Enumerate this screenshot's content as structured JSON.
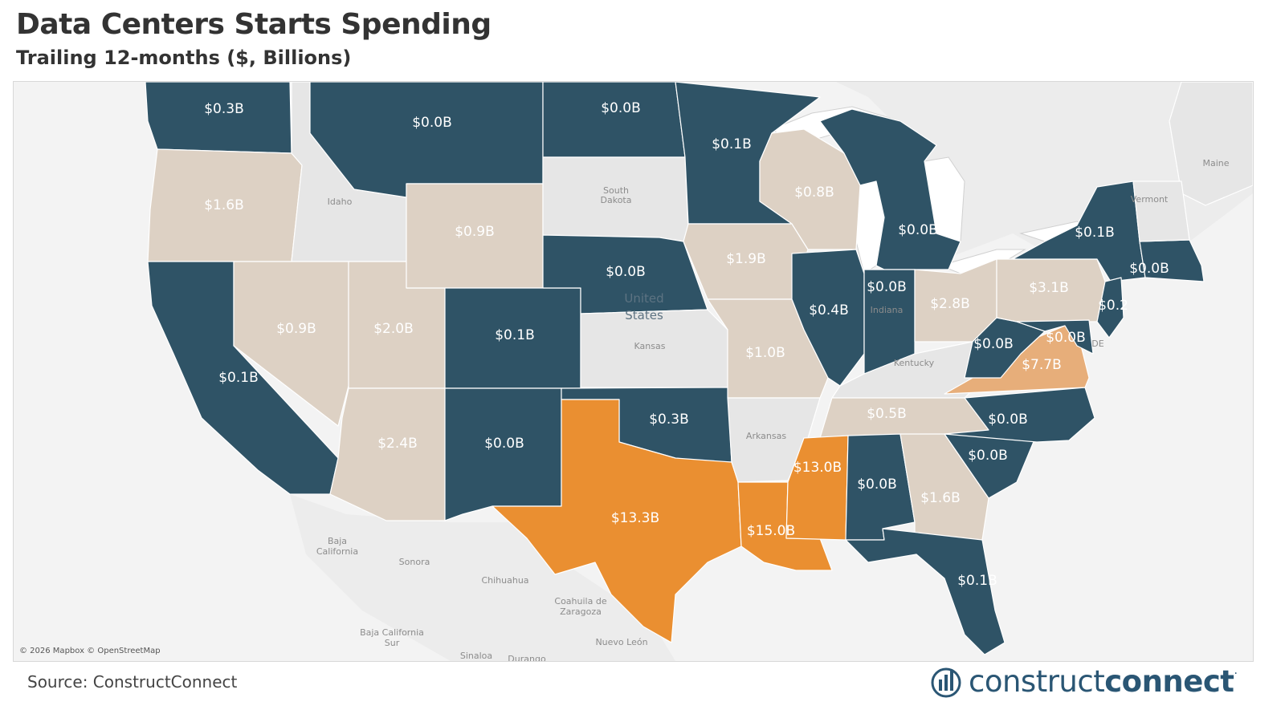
{
  "header": {
    "title": "Data Centers Starts Spending",
    "subtitle": "Trailing 12-months ($, Billions)"
  },
  "legend_colors": {
    "low": "#2f5366",
    "mid": "#ddd1c4",
    "high_mid": "#e7ae7a",
    "high": "#ea8f31",
    "no_data": "#e6e6e6",
    "background": "#f3f3f3"
  },
  "map": {
    "country_label": "United States",
    "states": [
      {
        "id": "WA",
        "label": "$0.3B"
      },
      {
        "id": "OR",
        "label": "$1.6B"
      },
      {
        "id": "CA",
        "label": "$0.1B"
      },
      {
        "id": "ID",
        "label": "Idaho"
      },
      {
        "id": "NV",
        "label": "$0.9B"
      },
      {
        "id": "UT",
        "label": "$2.0B"
      },
      {
        "id": "AZ",
        "label": "$2.4B"
      },
      {
        "id": "MT",
        "label": "$0.0B"
      },
      {
        "id": "WY",
        "label": "$0.9B"
      },
      {
        "id": "CO",
        "label": "$0.1B"
      },
      {
        "id": "NM",
        "label": "$0.0B"
      },
      {
        "id": "ND",
        "label": "$0.0B"
      },
      {
        "id": "SD",
        "label": "South Dakota"
      },
      {
        "id": "NE",
        "label": "$0.0B"
      },
      {
        "id": "KS",
        "label": "Kansas"
      },
      {
        "id": "OK",
        "label": "$0.3B"
      },
      {
        "id": "TX",
        "label": "$13.3B"
      },
      {
        "id": "MN",
        "label": "$0.1B"
      },
      {
        "id": "IA",
        "label": "$1.9B"
      },
      {
        "id": "MO",
        "label": "$1.0B"
      },
      {
        "id": "AR",
        "label": "Arkansas"
      },
      {
        "id": "LA",
        "label": "$15.0B"
      },
      {
        "id": "WI",
        "label": "$0.8B"
      },
      {
        "id": "IL",
        "label": "$0.4B"
      },
      {
        "id": "MI",
        "label": "$0.0B"
      },
      {
        "id": "IN",
        "label": "$0.0B"
      },
      {
        "id": "OH",
        "label": "$2.8B"
      },
      {
        "id": "KY",
        "label": "Kentucky"
      },
      {
        "id": "TN",
        "label": "$0.5B"
      },
      {
        "id": "MS",
        "label": "$13.0B"
      },
      {
        "id": "AL",
        "label": "$0.0B"
      },
      {
        "id": "GA",
        "label": "$1.6B"
      },
      {
        "id": "FL",
        "label": "$0.1B"
      },
      {
        "id": "SC",
        "label": "$0.0B"
      },
      {
        "id": "NC",
        "label": "$0.0B"
      },
      {
        "id": "VA",
        "label": "$7.7B"
      },
      {
        "id": "WV",
        "label": "$0.0B"
      },
      {
        "id": "PA",
        "label": "$3.1B"
      },
      {
        "id": "NY",
        "label": "$0.1B"
      },
      {
        "id": "MD",
        "label": "$0.0B"
      },
      {
        "id": "NJ",
        "label": "$0.2"
      },
      {
        "id": "NE_COAST",
        "label": "$0.0B"
      },
      {
        "id": "ME",
        "label": "Maine"
      },
      {
        "id": "VT",
        "label": "Vermont"
      }
    ],
    "geo_labels": {
      "baja_california": "Baja California",
      "sonora": "Sonora",
      "chihuahua": "Chihuahua",
      "coahuila": "Coahuila de Zaragoza",
      "baja_california_sur": "Baja California Sur",
      "nuevo_leon": "Nuevo León",
      "sinaloa": "Sinaloa",
      "durango": "Durango",
      "indiana": "Indiana",
      "delaware": "DE"
    },
    "attribution": "© 2026 Mapbox © OpenStreetMap"
  },
  "footer": {
    "source": "Source: ConstructConnect",
    "logo_light": "construct",
    "logo_bold": "connect",
    "logo_dot": "."
  }
}
